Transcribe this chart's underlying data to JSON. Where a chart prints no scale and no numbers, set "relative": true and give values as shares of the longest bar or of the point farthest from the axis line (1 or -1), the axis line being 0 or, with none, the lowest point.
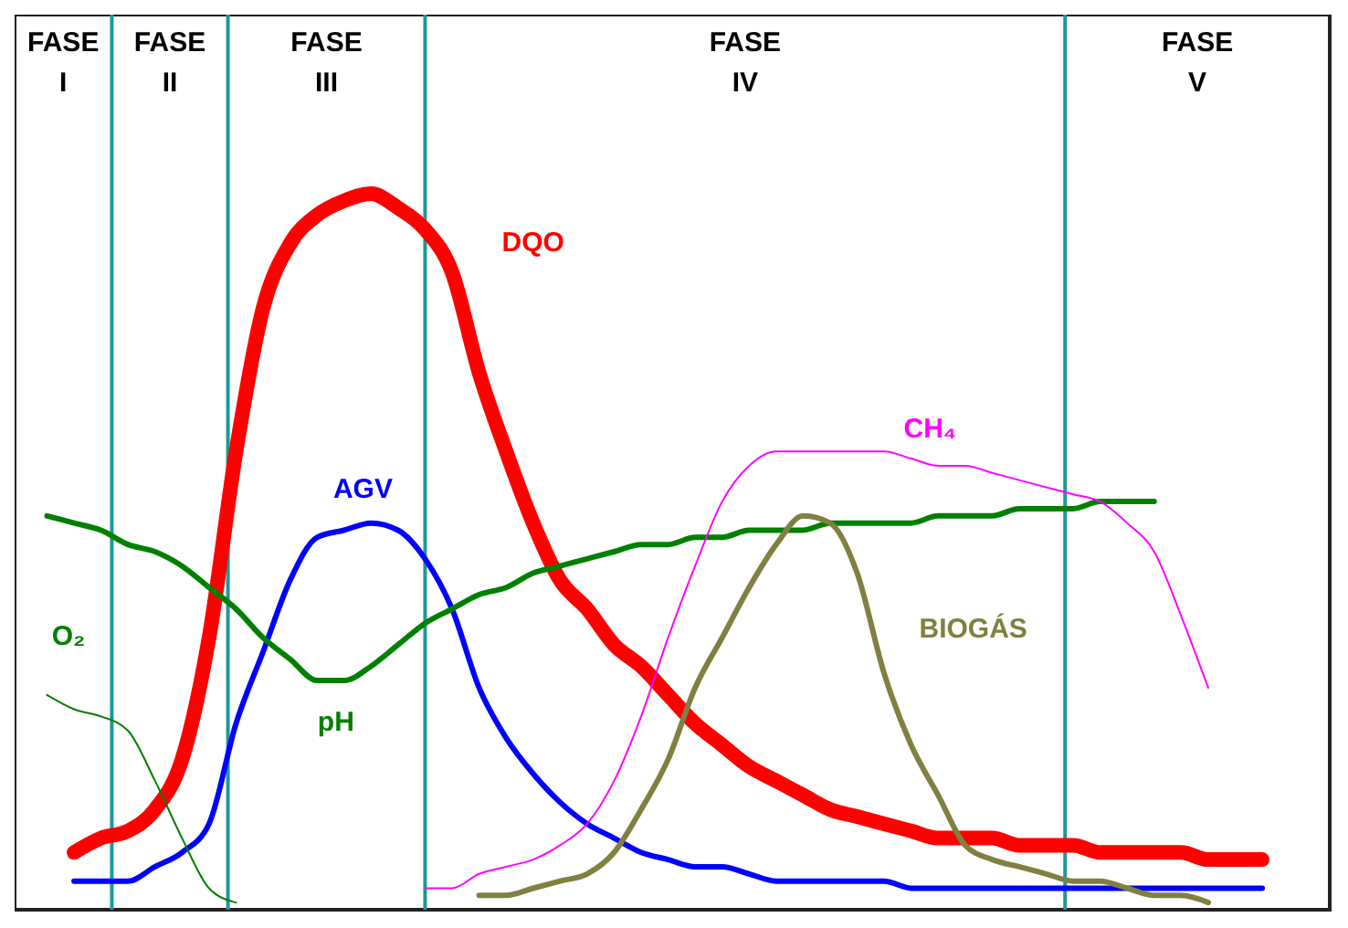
{
  "chart_data": {
    "type": "line",
    "relative": true,
    "annotations": [
      "FASE I",
      "FASE II",
      "FASE III",
      "FASE IV",
      "FASE V"
    ],
    "categories": [
      null,
      null,
      null,
      null,
      null,
      null,
      null,
      null,
      null,
      null,
      null,
      null,
      null,
      null,
      null,
      null,
      null,
      null,
      null,
      null,
      null,
      null,
      null,
      null,
      null,
      null,
      null,
      null,
      null,
      null,
      null,
      null,
      null,
      null,
      null,
      null,
      null,
      null,
      null,
      null,
      null,
      null,
      null,
      null,
      null,
      null,
      null,
      null,
      null
    ],
    "series": [
      {
        "name": "DQO",
        "color": "#ff0000",
        "values": [
          null,
          null,
          0.08,
          0.1,
          0.11,
          0.14,
          0.21,
          0.38,
          0.64,
          0.84,
          0.93,
          0.97,
          0.99,
          1,
          0.98,
          0.95,
          0.89,
          0.75,
          0.64,
          0.54,
          0.46,
          0.42,
          0.37,
          0.34,
          0.3,
          0.26,
          0.23,
          0.2,
          0.18,
          0.16,
          0.14,
          0.13,
          0.12,
          0.11,
          0.1,
          0.1,
          0.1,
          0.09,
          0.09,
          0.09,
          0.08,
          0.08,
          0.08,
          0.08,
          0.07,
          0.07,
          0.07,
          null,
          null
        ]
      },
      {
        "name": "AGV",
        "color": "#0000ff",
        "values": [
          null,
          null,
          0.04,
          0.04,
          0.04,
          0.06,
          0.08,
          0.12,
          0.26,
          0.36,
          0.46,
          0.52,
          0.53,
          0.54,
          0.53,
          0.49,
          0.42,
          0.31,
          0.24,
          0.19,
          0.15,
          0.12,
          0.1,
          0.08,
          0.07,
          0.06,
          0.06,
          0.05,
          0.04,
          0.04,
          0.04,
          0.04,
          0.04,
          0.03,
          0.03,
          0.03,
          0.03,
          0.03,
          0.03,
          0.03,
          0.03,
          0.03,
          0.03,
          0.03,
          0.03,
          0.03,
          0.03,
          null,
          null
        ]
      },
      {
        "name": "pH",
        "color": "#008000",
        "values": [
          null,
          0.55,
          0.54,
          0.53,
          0.51,
          0.5,
          0.48,
          0.45,
          0.42,
          0.38,
          0.35,
          0.32,
          0.32,
          0.34,
          0.37,
          0.4,
          0.42,
          0.44,
          0.45,
          0.47,
          0.48,
          0.49,
          0.5,
          0.51,
          0.51,
          0.52,
          0.52,
          0.53,
          0.53,
          0.53,
          0.54,
          0.54,
          0.54,
          0.54,
          0.55,
          0.55,
          0.55,
          0.56,
          0.56,
          0.56,
          0.57,
          0.57,
          0.57,
          null,
          null,
          null,
          null,
          null,
          null
        ]
      },
      {
        "name": "O₂",
        "color": "#008000",
        "values": [
          null,
          0.3,
          0.28,
          0.27,
          0.25,
          0.18,
          0.1,
          0.03,
          0.01,
          null,
          null,
          null,
          null,
          null,
          null,
          null,
          null,
          null,
          null,
          null,
          null,
          null,
          null,
          null,
          null,
          null,
          null,
          null,
          null,
          null,
          null,
          null,
          null,
          null,
          null,
          null,
          null,
          null,
          null,
          null,
          null,
          null,
          null,
          null,
          null,
          null,
          null,
          null,
          null
        ]
      },
      {
        "name": "CH₄",
        "color": "#ff00ff",
        "values": [
          null,
          null,
          null,
          null,
          null,
          null,
          null,
          null,
          null,
          null,
          null,
          null,
          null,
          null,
          null,
          0.03,
          0.03,
          0.05,
          0.06,
          0.07,
          0.09,
          0.12,
          0.18,
          0.27,
          0.38,
          0.48,
          0.57,
          0.62,
          0.64,
          0.64,
          0.64,
          0.64,
          0.64,
          0.63,
          0.62,
          0.62,
          0.61,
          0.6,
          0.59,
          0.58,
          0.57,
          0.54,
          0.5,
          0.41,
          0.31,
          null,
          null,
          null,
          null
        ]
      },
      {
        "name": "BIOGÁS",
        "color": "#808040",
        "values": [
          null,
          null,
          null,
          null,
          null,
          null,
          null,
          null,
          null,
          null,
          null,
          null,
          null,
          null,
          null,
          null,
          null,
          0.02,
          0.02,
          0.03,
          0.04,
          0.05,
          0.08,
          0.14,
          0.21,
          0.31,
          0.38,
          0.45,
          0.51,
          0.55,
          0.54,
          0.47,
          0.33,
          0.23,
          0.16,
          0.09,
          0.07,
          0.06,
          0.05,
          0.04,
          0.04,
          0.03,
          0.02,
          0.02,
          0.01,
          null,
          null,
          null,
          null
        ]
      }
    ]
  }
}
